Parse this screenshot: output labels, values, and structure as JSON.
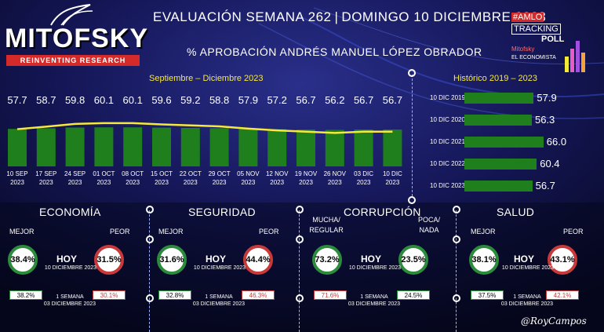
{
  "header": {
    "logo": "MITOFSKY",
    "logo_tagline": "REINVENTING RESEARCH",
    "title_main": "EVALUACIÓN SEMANA 262",
    "title_sep": "|",
    "title_date": "DOMINGO 10 DICIEMBRE 2023",
    "subtitle": "% APROBACIÓN ANDRÉS MANUEL LÓPEZ OBRADOR",
    "badge_line1": "#AMLO",
    "badge_line2": "TRACKING",
    "badge_line3": "POLL",
    "badge_line4": "Mitofsky",
    "badge_line5": "EL ECONOMISTA"
  },
  "chart_data": [
    {
      "type": "line",
      "title": "Septiembre – Diciembre 2023",
      "categories": [
        "10 SEP 2023",
        "17 SEP 2023",
        "24 SEP 2023",
        "01 OCT 2023",
        "08 OCT 2023",
        "15 OCT 2023",
        "22 OCT 2023",
        "29 OCT 2023",
        "05 NOV 2023",
        "12 NOV 2023",
        "19 NOV 2023",
        "26 NOV 2023",
        "03 DIC 2023",
        "10 DIC 2023"
      ],
      "date_top": [
        "10 SEP",
        "17 SEP",
        "24 SEP",
        "01 OCT",
        "08 OCT",
        "15 OCT",
        "22 OCT",
        "29 OCT",
        "05 NOV",
        "12 NOV",
        "19 NOV",
        "26 NOV",
        "03 DIC",
        "10 DIC"
      ],
      "date_bottom": [
        "2023",
        "2023",
        "2023",
        "2023",
        "2023",
        "2023",
        "2023",
        "2023",
        "2023",
        "2023",
        "2023",
        "2023",
        "2023",
        "2023"
      ],
      "values": [
        57.7,
        58.7,
        59.8,
        60.1,
        60.1,
        59.6,
        59.2,
        58.8,
        57.9,
        57.2,
        56.7,
        56.2,
        56.7,
        56.7
      ],
      "ylim": [
        0,
        100
      ],
      "bar_color": "#1f7f1d",
      "line_color": "#f5e93a"
    },
    {
      "type": "bar",
      "title": "Histórico 2019 – 2023",
      "categories": [
        "10 DIC 2019",
        "10 DIC 2020",
        "10 DIC 2021",
        "10 DIC 2022",
        "10 DIC 2023"
      ],
      "values": [
        57.9,
        56.3,
        66.0,
        60.4,
        56.7
      ],
      "value_labels": [
        "57.9",
        "56.3",
        "66.0",
        "60.4",
        "56.7"
      ],
      "bar_color": "#1f7f1d"
    }
  ],
  "categories": [
    {
      "title": "ECONOMÍA",
      "left_label": "MEJOR",
      "right_label": "PEOR",
      "left_value": "38.4%",
      "right_value": "31.5%",
      "hoy": "HOY",
      "hoy_date": "10 DICIEMBRE 2023",
      "prev_left": "38.2%",
      "prev_right": "30.1%",
      "prev_label_1": "1 SEMANA",
      "prev_label_2": "03 DICIEMBRE 2023"
    },
    {
      "title": "SEGURIDAD",
      "left_label": "MEJOR",
      "right_label": "PEOR",
      "left_value": "31.6%",
      "right_value": "44.4%",
      "hoy": "HOY",
      "hoy_date": "10 DICIEMBRE 2023",
      "prev_left": "32.8%",
      "prev_right": "46.3%",
      "prev_label_1": "1 SEMANA",
      "prev_label_2": "03 DICIEMBRE 2023"
    },
    {
      "title": "CORRUPCIÓN",
      "left_label": "MUCHA/ REGULAR",
      "right_label": "POCA/ NADA",
      "left_value": "73.2%",
      "right_value": "23.5%",
      "hoy": "HOY",
      "hoy_date": "10 DICIEMBRE 2023",
      "prev_left": "71.6%",
      "prev_right": "24.5%",
      "prev_label_1": "1 SEMANA",
      "prev_label_2": "03 DICIEMBRE 2023"
    },
    {
      "title": "SALUD",
      "left_label": "MEJOR",
      "right_label": "PEOR",
      "left_value": "38.1%",
      "right_value": "43.1%",
      "hoy": "HOY",
      "hoy_date": "10 DICIEMBRE 2023",
      "prev_left": "37.5%",
      "prev_right": "42.1%",
      "prev_label_1": "1 SEMANA",
      "prev_label_2": "03 DICIEMBRE 2023"
    }
  ],
  "signature": "@RoyCampos",
  "colors": {
    "green": "#2b8c3c",
    "red": "#c83a3a",
    "yellow": "#f5e93a",
    "bg": "#0a0c26"
  }
}
